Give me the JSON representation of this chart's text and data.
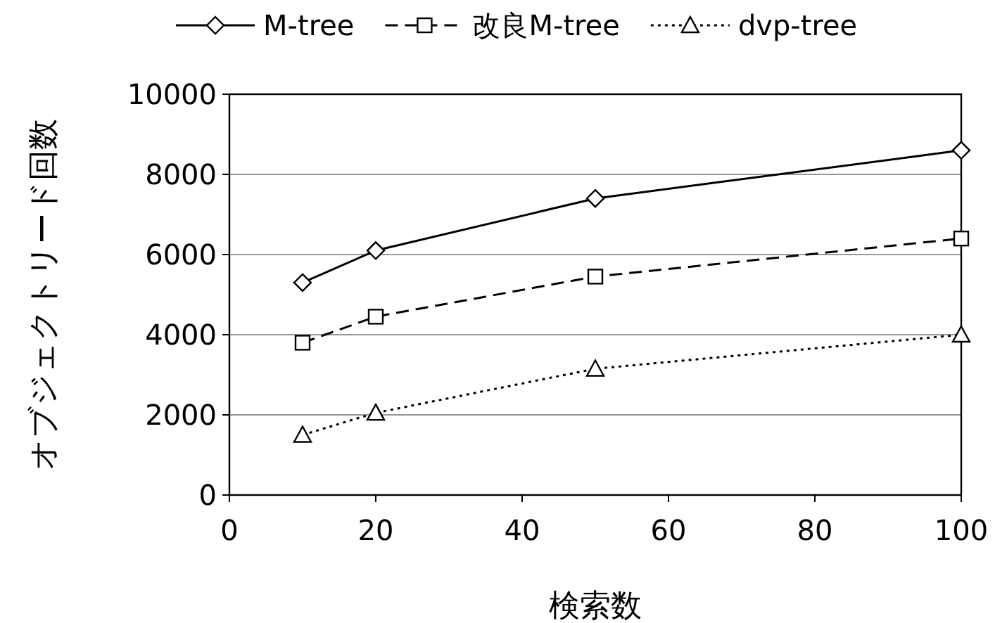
{
  "chart_data": {
    "type": "line",
    "xlabel": "検索数",
    "ylabel": "オブジェクトリード回数",
    "x": [
      10,
      20,
      50,
      100
    ],
    "series": [
      {
        "name": "M-tree",
        "color": "#000000",
        "marker": "diamond",
        "line_style": "solid",
        "values": [
          5300,
          6100,
          7400,
          8600
        ]
      },
      {
        "name": "改良M-tree",
        "color": "#000000",
        "marker": "square",
        "line_style": "dashed",
        "values": [
          3800,
          4450,
          5450,
          6400
        ]
      },
      {
        "name": "dvp-tree",
        "color": "#000000",
        "marker": "triangle",
        "line_style": "dotted",
        "values": [
          1500,
          2050,
          3150,
          4000
        ]
      }
    ],
    "xlim": [
      0,
      100
    ],
    "xticks": [
      0,
      20,
      40,
      60,
      80,
      100
    ],
    "ylim": [
      0,
      10000
    ],
    "yticks": [
      0,
      2000,
      4000,
      6000,
      8000,
      10000
    ],
    "grid": "y",
    "legend": "top"
  }
}
